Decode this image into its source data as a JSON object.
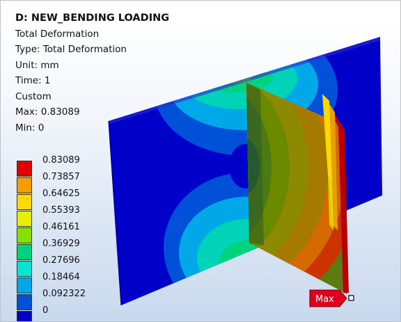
{
  "header": {
    "title": "D: NEW_BENDING LOADING",
    "result": "Total Deformation",
    "type": "Type: Total Deformation",
    "unit": "Unit: mm",
    "time": "Time: 1",
    "custom": "Custom",
    "max": "Max: 0.83089",
    "min": "Min: 0"
  },
  "legend": {
    "levels": [
      {
        "label": "0.83089",
        "color": "#e10000"
      },
      {
        "label": "0.73857",
        "color": "#f49c00"
      },
      {
        "label": "0.64625",
        "color": "#ffd800"
      },
      {
        "label": "0.55393",
        "color": "#e6f000"
      },
      {
        "label": "0.46161",
        "color": "#88e000"
      },
      {
        "label": "0.36929",
        "color": "#00d37e"
      },
      {
        "label": "0.27696",
        "color": "#00e6d3"
      },
      {
        "label": "0.18464",
        "color": "#00a8e8"
      },
      {
        "label": "0.092322",
        "color": "#0050d8"
      },
      {
        "label": "0",
        "color": "#0000c8"
      }
    ]
  },
  "probe": {
    "max_label": "Max",
    "color": "#e0001c"
  }
}
